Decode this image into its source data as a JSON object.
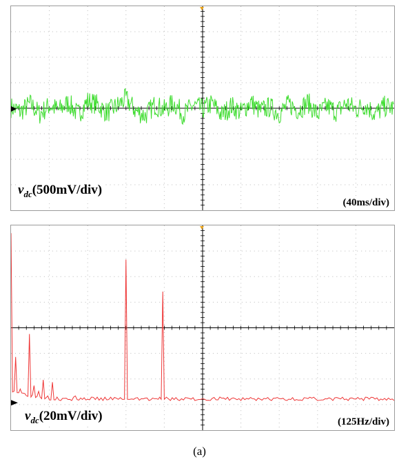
{
  "colors": {
    "waveform_dc": "#3ddc2e",
    "spectrum": "#ee3535",
    "grid": "#b8b8b8",
    "trigger": "#e9a21a"
  },
  "chart_data": [
    {
      "type": "line",
      "panel": "top",
      "signal_label": {
        "symbol": "v",
        "subscript": "dc",
        "scale": "(500mV/div)"
      },
      "time_scale": "(40ms/div)",
      "grid": true,
      "xlim": [
        0,
        400
      ],
      "ylim": [
        -2000,
        2000
      ],
      "x_unit": "ms",
      "y_unit": "mV",
      "approx_noise_envelope_mV": [
        -250,
        250
      ],
      "series": [
        {
          "x": [
            0,
            10,
            20,
            30,
            40,
            50,
            60,
            70,
            80,
            90,
            100,
            110,
            120,
            130,
            140,
            150,
            160,
            170,
            180,
            190,
            200,
            210,
            220,
            230,
            240,
            250,
            260,
            270,
            280,
            290,
            300,
            310,
            320,
            330,
            340,
            350,
            360,
            370,
            380,
            390,
            400
          ],
          "y": [
            30,
            -110,
            140,
            -190,
            90,
            -60,
            180,
            -210,
            230,
            120,
            -140,
            60,
            310,
            -80,
            -240,
            110,
            -50,
            170,
            -200,
            90,
            -30,
            150,
            -220,
            80,
            -130,
            210,
            -90,
            40,
            -170,
            130,
            -60,
            190,
            -210,
            70,
            -120,
            160,
            -40,
            110,
            -190,
            60,
            0
          ]
        }
      ]
    },
    {
      "type": "line",
      "panel": "bottom",
      "signal_label": {
        "symbol": "v",
        "subscript": "dc",
        "scale": "(20mV/div)"
      },
      "freq_scale": "(125Hz/div)",
      "grid": true,
      "xlim": [
        0,
        1250
      ],
      "ylim": [
        0,
        150
      ],
      "x_unit": "Hz",
      "y_unit": "mV",
      "series": [
        {
          "x": [
            0,
            15,
            30,
            45,
            60,
            75,
            90,
            105,
            120,
            135,
            150,
            180,
            210,
            250,
            300,
            350,
            370,
            375,
            380,
            400,
            450,
            480,
            490,
            495,
            500,
            520,
            550,
            600,
            650,
            700,
            750,
            800,
            850,
            900,
            950,
            1000,
            1050,
            1100,
            1150,
            1200,
            1250
          ],
          "y": [
            148,
            40,
            12,
            8,
            60,
            15,
            10,
            20,
            6,
            18,
            5,
            4,
            6,
            3,
            2,
            3,
            3,
            125,
            3,
            3,
            2,
            3,
            3,
            97,
            3,
            2,
            2,
            2,
            2,
            3,
            2,
            2,
            2,
            2,
            2,
            2,
            2,
            2,
            2,
            2,
            2
          ]
        }
      ]
    }
  ],
  "caption": "(a)"
}
